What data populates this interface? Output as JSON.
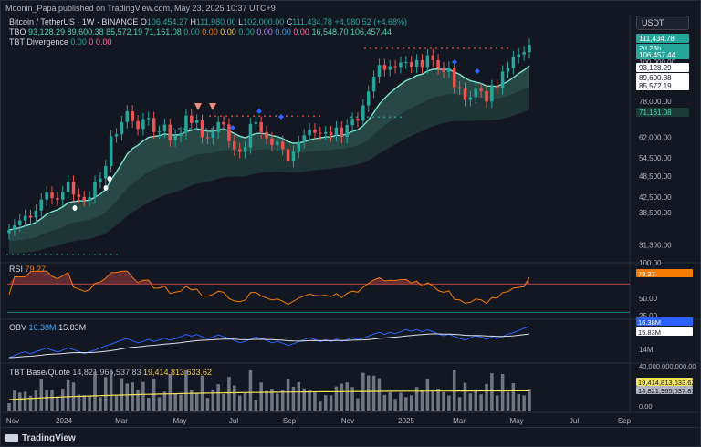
{
  "publisher_line": "Moonin_Papa published on TradingView.com, May 23, 2025 10:37 UTC+9",
  "symbol": {
    "title": "Bitcoin / TetherUS · 1W · BINANCE",
    "ohlc": [
      {
        "k": "O",
        "v": "106,454.27"
      },
      {
        "k": "H",
        "v": "111,980.00"
      },
      {
        "k": "L",
        "v": "102,000.00"
      },
      {
        "k": "C",
        "v": "111,434.78"
      }
    ],
    "change": "+4,980.52 (+4.68%)"
  },
  "indicators": {
    "tbo": {
      "name": "TBO",
      "values": [
        "93,128.29",
        "89,600.38",
        "85,572.19",
        "71,161.08",
        "0.00",
        "0.00",
        "0.00",
        "0.00",
        "0.00",
        "0.00",
        "0.00",
        "16,548.70",
        "106,457.44"
      ],
      "colors": [
        "#4dd0b6",
        "#4dd0b6",
        "#4dd0b6",
        "#4dd0b6",
        "#26a69a",
        "#f57c00",
        "#f2c94c",
        "#26a69a",
        "#b388ff",
        "#42a5f5",
        "#ff6b9a",
        "#4dd0b6",
        "#4dd0b6"
      ]
    },
    "divergence": {
      "name": "TBT Divergence",
      "values": [
        "0.00",
        "0",
        "0.00"
      ]
    },
    "rsi": {
      "name": "RSI",
      "value": "79.27"
    },
    "obv": {
      "name": "OBV",
      "value1": "16.38M",
      "value2": "15.83M"
    },
    "base_quote": {
      "name": "TBT Base/Quote",
      "value1": "14,821,965,537.83",
      "value2": "19,414,813,633.62"
    }
  },
  "currency_button": "USDT",
  "price_labels": [
    {
      "text": "111,434.78",
      "bg": "#26a69a",
      "fg": "#ffffff"
    },
    {
      "text": "2d 23h",
      "bg": "#26a69a",
      "fg": "#ffffff"
    },
    {
      "text": "106,457.44",
      "bg": "#26a69a",
      "fg": "#ffffff"
    },
    {
      "text": "93,128.29",
      "bg": "#ffffff",
      "fg": "#131722"
    },
    {
      "text": "89,600.38",
      "bg": "#ffffff",
      "fg": "#131722"
    },
    {
      "text": "85,572.19",
      "bg": "#ffffff",
      "fg": "#131722"
    },
    {
      "text": "71,161.08",
      "bg": "#1d3b36",
      "fg": "#4dd0b6"
    }
  ],
  "indicator_labels": {
    "rsi": {
      "text": "79.27",
      "bg": "#f57c00"
    },
    "obv1": {
      "text": "16.38M",
      "bg": "#2962ff"
    },
    "obv2": {
      "text": "15.83M",
      "bg": "#ffffff"
    },
    "bq1": {
      "text": "19,414,813,633.62",
      "bg": "#f2e35c"
    },
    "bq2": {
      "text": "14,821,965,537.83",
      "bg": "#b2b5be"
    }
  },
  "branding": "TradingView",
  "colors": {
    "up": "#26a69a",
    "down": "#ef5350",
    "ma": "#7fe3cf",
    "rsi": "#f57c00",
    "obv": "#2962ff",
    "obv_ma": "#e0e3eb",
    "bq_line": "#f2e35c"
  },
  "chart_data": {
    "type": "candlestick",
    "title": "Bitcoin / TetherUS · 1W · BINANCE",
    "y_scale": "log",
    "ylim": [
      28000,
      135000
    ],
    "x_tick_labels": [
      "Nov",
      "2024",
      "Mar",
      "May",
      "Jul",
      "Sep",
      "Nov",
      "2025",
      "Mar",
      "May",
      "Jul",
      "Sep"
    ],
    "y_tick_labels": [
      "100,000.00",
      "78,000.00",
      "62,000.00",
      "54,500.00",
      "48,500.00",
      "42,500.00",
      "38,500.00",
      "31,300.00"
    ],
    "closes": [
      34500,
      35500,
      36600,
      37700,
      37300,
      39000,
      41800,
      43700,
      42200,
      41800,
      43800,
      46800,
      43100,
      42500,
      41700,
      42400,
      46800,
      47800,
      51700,
      62400,
      63200,
      68300,
      73100,
      68700,
      65400,
      69600,
      70100,
      64100,
      64300,
      67200,
      60900,
      62600,
      63800,
      71200,
      67900,
      69000,
      62000,
      61800,
      64100,
      68300,
      67300,
      60500,
      57500,
      56500,
      58200,
      67500,
      68200,
      64100,
      61600,
      59100,
      60300,
      57600,
      53400,
      56600,
      60200,
      62800,
      65200,
      63800,
      63400,
      64100,
      62800,
      66000,
      62200,
      67000,
      69800,
      68900,
      75900,
      82900,
      91100,
      98100,
      95100,
      97300,
      96900,
      99600,
      100000,
      97100,
      101200,
      96800,
      104300,
      101200,
      96100,
      94000,
      96400,
      85200,
      84400,
      78600,
      80000,
      84300,
      83100,
      77800,
      85800,
      84800,
      94100,
      96200,
      103100,
      104900,
      106400,
      111400
    ]
  },
  "rsi_data": {
    "ylim": [
      20,
      100
    ],
    "y_tick_labels": [
      "100.00",
      "50.00",
      "25.00"
    ],
    "overbought": 70,
    "oversold": 30
  },
  "obv_data": {
    "y_tick_labels": [
      "14M"
    ]
  },
  "bq_data": {
    "y_tick_labels": [
      "40,000,000,000.00",
      "0.00"
    ]
  }
}
